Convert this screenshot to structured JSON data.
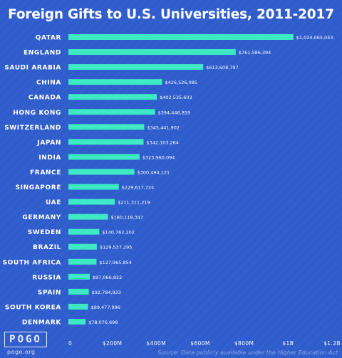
{
  "chart_data": {
    "type": "bar",
    "orientation": "horizontal",
    "title": "Foreign Gifts to U.S. Universities, 2011-2017",
    "categories": [
      "QATAR",
      "ENGLAND",
      "SAUDI ARABIA",
      "CHINA",
      "CANADA",
      "HONG KONG",
      "SWITZERLAND",
      "JAPAN",
      "INDIA",
      "FRANCE",
      "SINGAPORE",
      "UAE",
      "GERMANY",
      "SWEDEN",
      "BRAZIL",
      "SOUTH AFRICA",
      "RUSSIA",
      "SPAIN",
      "SOUTH KOREA",
      "DENMARK"
    ],
    "values": [
      1024065043,
      761586394,
      613608797,
      426526085,
      402535603,
      394446859,
      345441902,
      342103264,
      323960094,
      300494121,
      229617724,
      211311219,
      180118347,
      140762202,
      129537295,
      127965854,
      97066822,
      92784923,
      89477996,
      78076698
    ],
    "value_labels": [
      "$1,024,065,043",
      "$761,586,394",
      "$613,608,797",
      "$426,526,085",
      "$402,535,603",
      "$394,446,859",
      "$345,441,902",
      "$342,103,264",
      "$323,960,094",
      "$300,494,121",
      "$229,617,724",
      "$211,311,219",
      "$180,118,347",
      "$140,762,202",
      "$129,537,295",
      "$127,965,854",
      "$97,066,822",
      "$92,784,923",
      "$89,477,996",
      "$78,076,698"
    ],
    "xlim": [
      0,
      1200000000
    ],
    "xticks": [
      0,
      200000000,
      400000000,
      600000000,
      800000000,
      1000000000,
      1200000000
    ],
    "xtick_labels": [
      "0",
      "$200M",
      "$400M",
      "$600M",
      "$800M",
      "$1B",
      "$1.2B"
    ],
    "grid": false,
    "legend": "none"
  },
  "colors": {
    "background": "#2f5dcc",
    "bar": "#3deac4",
    "text": "#ffffff"
  },
  "logo": {
    "word": "POGO",
    "site": "pogo.org"
  },
  "source": "Source: Data publicly available under the Higher Education Act"
}
